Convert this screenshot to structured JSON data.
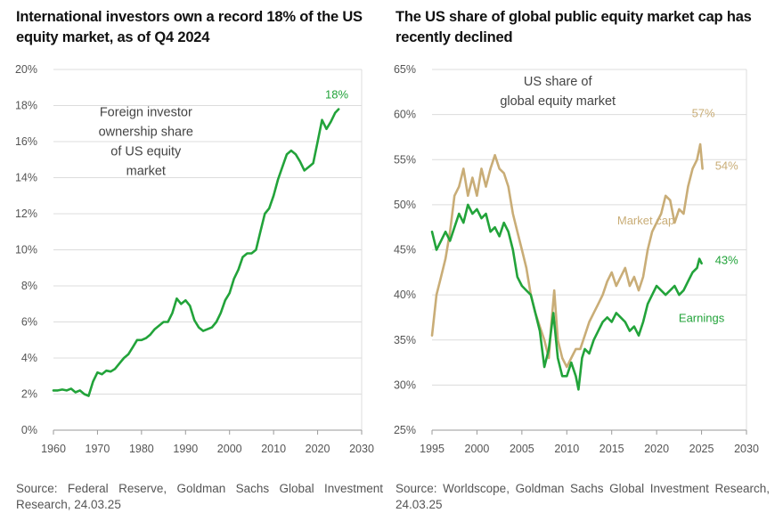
{
  "colors": {
    "green": "#22a33a",
    "tan": "#c9ad77",
    "grid": "#dcdcdc",
    "axis": "#9a9a9a",
    "text": "#555555"
  },
  "chart_data": [
    {
      "type": "line",
      "title": "International investors own a record 18% of the US equity market, as of Q4 2024",
      "source": "Source: Federal Reserve, Goldman Sachs Global Investment Research, 24.03.25",
      "annotation": [
        "Foreign investor",
        "ownership share",
        "of US equity",
        "market"
      ],
      "xlim": [
        1960,
        2030
      ],
      "ylim": [
        0,
        20
      ],
      "x_ticks": [
        1960,
        1970,
        1980,
        1990,
        2000,
        2010,
        2020,
        2030
      ],
      "x_tick_labels": [
        "1960",
        "1970",
        "1980",
        "1990",
        "2000",
        "2010",
        "2020",
        "2030"
      ],
      "y_ticks": [
        0,
        2,
        4,
        6,
        8,
        10,
        12,
        14,
        16,
        18,
        20
      ],
      "y_tick_labels": [
        "0%",
        "2%",
        "4%",
        "6%",
        "8%",
        "10%",
        "12%",
        "14%",
        "16%",
        "18%",
        "20%"
      ],
      "grid": "horizontal",
      "series": [
        {
          "color": "#22a33a",
          "end_label": "18%",
          "points": [
            [
              1960,
              2.2
            ],
            [
              1961,
              2.2
            ],
            [
              1962,
              2.25
            ],
            [
              1963,
              2.2
            ],
            [
              1964,
              2.3
            ],
            [
              1965,
              2.1
            ],
            [
              1966,
              2.2
            ],
            [
              1967,
              2.0
            ],
            [
              1968,
              1.9
            ],
            [
              1969,
              2.7
            ],
            [
              1970,
              3.2
            ],
            [
              1971,
              3.1
            ],
            [
              1972,
              3.3
            ],
            [
              1973,
              3.25
            ],
            [
              1974,
              3.4
            ],
            [
              1975,
              3.7
            ],
            [
              1976,
              4.0
            ],
            [
              1977,
              4.2
            ],
            [
              1978,
              4.6
            ],
            [
              1979,
              5.0
            ],
            [
              1980,
              5.0
            ],
            [
              1981,
              5.1
            ],
            [
              1982,
              5.3
            ],
            [
              1983,
              5.6
            ],
            [
              1984,
              5.8
            ],
            [
              1985,
              6.0
            ],
            [
              1986,
              6.0
            ],
            [
              1987,
              6.5
            ],
            [
              1988,
              7.3
            ],
            [
              1989,
              7.0
            ],
            [
              1990,
              7.2
            ],
            [
              1991,
              6.9
            ],
            [
              1992,
              6.1
            ],
            [
              1993,
              5.7
            ],
            [
              1994,
              5.5
            ],
            [
              1995,
              5.6
            ],
            [
              1996,
              5.7
            ],
            [
              1997,
              6.0
            ],
            [
              1998,
              6.5
            ],
            [
              1999,
              7.2
            ],
            [
              2000,
              7.6
            ],
            [
              2001,
              8.4
            ],
            [
              2002,
              8.9
            ],
            [
              2003,
              9.6
            ],
            [
              2004,
              9.8
            ],
            [
              2005,
              9.8
            ],
            [
              2006,
              10.0
            ],
            [
              2007,
              11.0
            ],
            [
              2008,
              12.0
            ],
            [
              2009,
              12.3
            ],
            [
              2010,
              13.0
            ],
            [
              2011,
              13.9
            ],
            [
              2012,
              14.6
            ],
            [
              2013,
              15.3
            ],
            [
              2014,
              15.5
            ],
            [
              2015,
              15.3
            ],
            [
              2016,
              14.9
            ],
            [
              2017,
              14.4
            ],
            [
              2018,
              14.6
            ],
            [
              2019,
              14.8
            ],
            [
              2020,
              16.0
            ],
            [
              2021,
              17.2
            ],
            [
              2022,
              16.7
            ],
            [
              2023,
              17.1
            ],
            [
              2024,
              17.6
            ],
            [
              2024.75,
              17.8
            ]
          ]
        }
      ]
    },
    {
      "type": "line",
      "title": "The US share of global public equity market cap has recently declined",
      "source": "Source: Worldscope, Goldman Sachs Global Investment Research, 24.03.25",
      "annotation": [
        "US share of",
        "global equity market"
      ],
      "xlim": [
        1995,
        2030
      ],
      "ylim": [
        25,
        65
      ],
      "x_ticks": [
        1995,
        2000,
        2005,
        2010,
        2015,
        2020,
        2025,
        2030
      ],
      "x_tick_labels": [
        "1995",
        "2000",
        "2005",
        "2010",
        "2015",
        "2020",
        "2025",
        "2030"
      ],
      "y_ticks": [
        25,
        30,
        35,
        40,
        45,
        50,
        55,
        60,
        65
      ],
      "y_tick_labels": [
        "25%",
        "30%",
        "35%",
        "40%",
        "45%",
        "50%",
        "55%",
        "60%",
        "65%"
      ],
      "grid": "horizontal",
      "series": [
        {
          "name": "Market cap",
          "color": "#c9ad77",
          "peak_label": "57%",
          "end_label": "54%",
          "points": [
            [
              1995.0,
              35.5
            ],
            [
              1995.5,
              40.0
            ],
            [
              1996.0,
              42.0
            ],
            [
              1996.5,
              44.0
            ],
            [
              1997.0,
              47.0
            ],
            [
              1997.5,
              51.0
            ],
            [
              1998.0,
              52.0
            ],
            [
              1998.5,
              54.0
            ],
            [
              1999.0,
              51.0
            ],
            [
              1999.5,
              53.0
            ],
            [
              2000.0,
              51.0
            ],
            [
              2000.5,
              54.0
            ],
            [
              2001.0,
              52.0
            ],
            [
              2001.5,
              54.0
            ],
            [
              2002.0,
              55.5
            ],
            [
              2002.5,
              54.0
            ],
            [
              2003.0,
              53.5
            ],
            [
              2003.5,
              52.0
            ],
            [
              2004.0,
              49.0
            ],
            [
              2004.5,
              47.0
            ],
            [
              2005.0,
              45.0
            ],
            [
              2005.5,
              43.0
            ],
            [
              2006.0,
              40.0
            ],
            [
              2006.5,
              38.0
            ],
            [
              2007.0,
              36.5
            ],
            [
              2007.5,
              35.0
            ],
            [
              2008.0,
              33.0
            ],
            [
              2008.3,
              37.0
            ],
            [
              2008.6,
              40.5
            ],
            [
              2009.0,
              35.0
            ],
            [
              2009.5,
              33.0
            ],
            [
              2010.0,
              32.0
            ],
            [
              2010.5,
              33.0
            ],
            [
              2011.0,
              34.0
            ],
            [
              2011.5,
              34.0
            ],
            [
              2012.0,
              35.5
            ],
            [
              2012.5,
              37.0
            ],
            [
              2013.0,
              38.0
            ],
            [
              2013.5,
              39.0
            ],
            [
              2014.0,
              40.0
            ],
            [
              2014.5,
              41.5
            ],
            [
              2015.0,
              42.5
            ],
            [
              2015.5,
              41.0
            ],
            [
              2016.0,
              42.0
            ],
            [
              2016.5,
              43.0
            ],
            [
              2017.0,
              41.0
            ],
            [
              2017.5,
              42.0
            ],
            [
              2018.0,
              40.5
            ],
            [
              2018.5,
              42.0
            ],
            [
              2019.0,
              45.0
            ],
            [
              2019.5,
              47.0
            ],
            [
              2020.0,
              48.0
            ],
            [
              2020.5,
              49.0
            ],
            [
              2021.0,
              51.0
            ],
            [
              2021.5,
              50.5
            ],
            [
              2022.0,
              48.0
            ],
            [
              2022.5,
              49.5
            ],
            [
              2023.0,
              49.0
            ],
            [
              2023.5,
              52.0
            ],
            [
              2024.0,
              54.0
            ],
            [
              2024.5,
              55.0
            ],
            [
              2024.85,
              56.7
            ],
            [
              2025.1,
              54.0
            ]
          ]
        },
        {
          "name": "Earnings",
          "color": "#22a33a",
          "end_label": "43%",
          "points": [
            [
              1995.0,
              47.0
            ],
            [
              1995.5,
              45.0
            ],
            [
              1996.0,
              46.0
            ],
            [
              1996.5,
              47.0
            ],
            [
              1997.0,
              46.0
            ],
            [
              1997.5,
              47.5
            ],
            [
              1998.0,
              49.0
            ],
            [
              1998.5,
              48.0
            ],
            [
              1999.0,
              50.0
            ],
            [
              1999.5,
              49.0
            ],
            [
              2000.0,
              49.5
            ],
            [
              2000.5,
              48.5
            ],
            [
              2001.0,
              49.0
            ],
            [
              2001.5,
              47.0
            ],
            [
              2002.0,
              47.5
            ],
            [
              2002.5,
              46.5
            ],
            [
              2003.0,
              48.0
            ],
            [
              2003.5,
              47.0
            ],
            [
              2004.0,
              45.0
            ],
            [
              2004.5,
              42.0
            ],
            [
              2005.0,
              41.0
            ],
            [
              2005.5,
              40.5
            ],
            [
              2006.0,
              40.0
            ],
            [
              2006.5,
              38.0
            ],
            [
              2007.0,
              36.0
            ],
            [
              2007.5,
              32.0
            ],
            [
              2008.0,
              34.0
            ],
            [
              2008.5,
              38.0
            ],
            [
              2009.0,
              33.0
            ],
            [
              2009.5,
              31.0
            ],
            [
              2010.0,
              31.0
            ],
            [
              2010.5,
              32.5
            ],
            [
              2011.0,
              31.0
            ],
            [
              2011.3,
              29.5
            ],
            [
              2011.7,
              33.0
            ],
            [
              2012.0,
              34.0
            ],
            [
              2012.5,
              33.5
            ],
            [
              2013.0,
              35.0
            ],
            [
              2013.5,
              36.0
            ],
            [
              2014.0,
              37.0
            ],
            [
              2014.5,
              37.5
            ],
            [
              2015.0,
              37.0
            ],
            [
              2015.5,
              38.0
            ],
            [
              2016.0,
              37.5
            ],
            [
              2016.5,
              37.0
            ],
            [
              2017.0,
              36.0
            ],
            [
              2017.5,
              36.5
            ],
            [
              2018.0,
              35.5
            ],
            [
              2018.5,
              37.0
            ],
            [
              2019.0,
              39.0
            ],
            [
              2019.5,
              40.0
            ],
            [
              2020.0,
              41.0
            ],
            [
              2020.5,
              40.5
            ],
            [
              2021.0,
              40.0
            ],
            [
              2021.5,
              40.5
            ],
            [
              2022.0,
              41.0
            ],
            [
              2022.5,
              40.0
            ],
            [
              2023.0,
              40.5
            ],
            [
              2023.5,
              41.5
            ],
            [
              2024.0,
              42.5
            ],
            [
              2024.5,
              43.0
            ],
            [
              2024.75,
              44.0
            ],
            [
              2025.0,
              43.5
            ]
          ]
        }
      ]
    }
  ]
}
